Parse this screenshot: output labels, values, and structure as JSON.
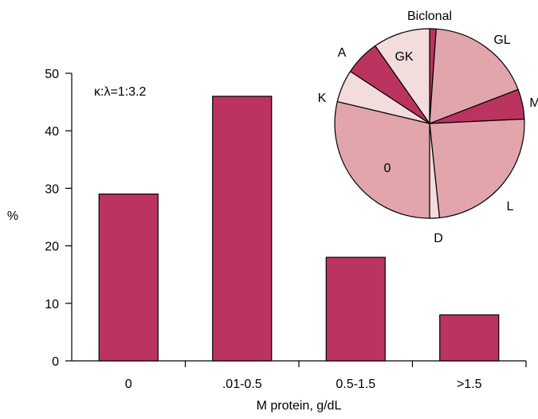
{
  "chart_data": [
    {
      "type": "bar",
      "categories": [
        "0",
        ".01-0.5",
        "0.5-1.5",
        ">1.5"
      ],
      "values": [
        29,
        46,
        18,
        8
      ],
      "xlabel": "M protein, g/dL",
      "ylabel": "%",
      "ylim": [
        0,
        50
      ],
      "yticks": [
        0,
        10,
        20,
        30,
        40,
        50
      ],
      "annotation": "κ:λ=1:3.2",
      "grid": false,
      "bar_color": "#bb3460"
    },
    {
      "type": "pie",
      "labels": [
        "Biclonal",
        "GL",
        "M",
        "L",
        "D",
        "0",
        "K",
        "A",
        "GK"
      ],
      "values": [
        1.2,
        19.5,
        5.5,
        26.0,
        1.8,
        31.0,
        6.0,
        6.5,
        10.5
      ],
      "colors": [
        "#bb3460",
        "#e2a5ac",
        "#bb3460",
        "#e2a5ac",
        "#f3dcdc",
        "#e2a5ac",
        "#f3dcdc",
        "#bb3460",
        "#f3dcdc"
      ]
    }
  ]
}
